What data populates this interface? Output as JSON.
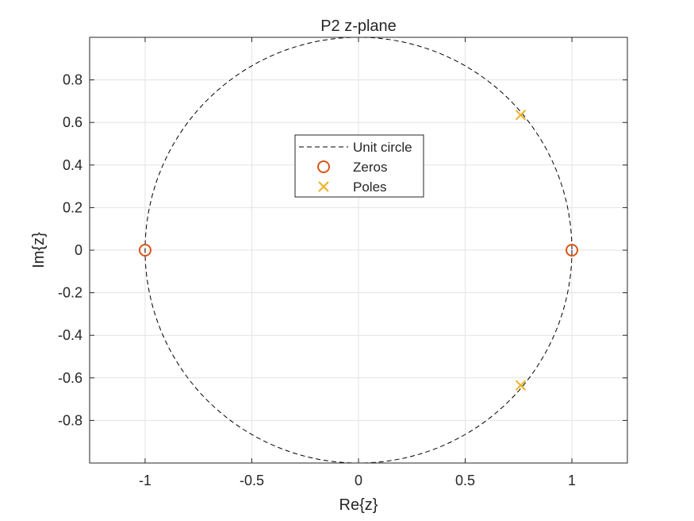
{
  "chart_data": {
    "type": "scatter",
    "title": "P2 z-plane",
    "xlabel": "Re{z}",
    "ylabel": "Im{z}",
    "xlim": [
      -1.26,
      1.26
    ],
    "ylim": [
      -1.0,
      1.0
    ],
    "xticks": [
      -1,
      -0.5,
      0,
      0.5,
      1
    ],
    "xtick_labels": [
      "-1",
      "-0.5",
      "0",
      "0.5",
      "1"
    ],
    "yticks": [
      -0.8,
      -0.6,
      -0.4,
      -0.2,
      0,
      0.2,
      0.4,
      0.6,
      0.8
    ],
    "ytick_labels": [
      "-0.8",
      "-0.6",
      "-0.4",
      "-0.2",
      "0",
      "0.2",
      "0.4",
      "0.6",
      "0.8"
    ],
    "grid": true,
    "legend_position": "upper-center",
    "series": [
      {
        "name": "Unit circle",
        "kind": "circle",
        "center": [
          0,
          0
        ],
        "radius": 1,
        "line_style": "dashed",
        "color": "#000000"
      },
      {
        "name": "Zeros",
        "kind": "marker",
        "marker": "circle",
        "color": "#D95319",
        "points": [
          [
            -1,
            0
          ],
          [
            1,
            0
          ]
        ]
      },
      {
        "name": "Poles",
        "kind": "marker",
        "marker": "x",
        "color": "#EDB120",
        "points": [
          [
            0.76,
            0.635
          ],
          [
            0.76,
            -0.635
          ]
        ]
      }
    ]
  }
}
